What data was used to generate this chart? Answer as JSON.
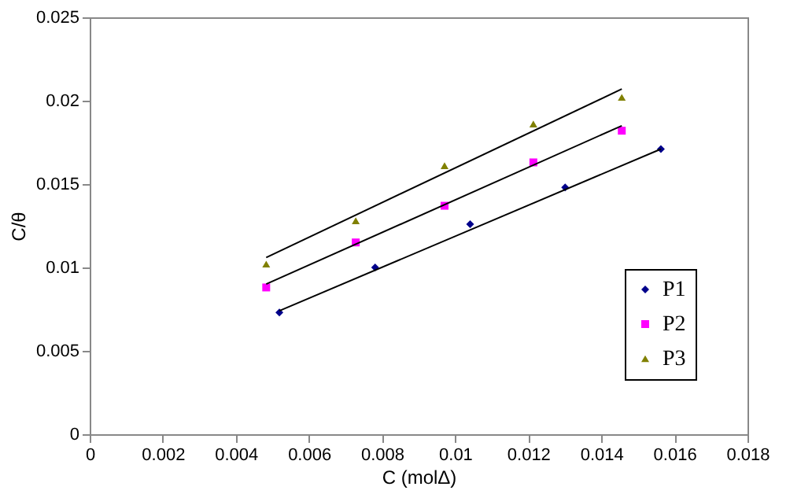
{
  "chart_data": {
    "type": "scatter",
    "xlabel": "C (molΔ)",
    "ylabel": "C/θ",
    "xlim": [
      0,
      0.018
    ],
    "ylim": [
      0,
      0.025
    ],
    "xticks": [
      0,
      0.002,
      0.004,
      0.006,
      0.008,
      0.01,
      0.012,
      0.014,
      0.016,
      0.018
    ],
    "yticks": [
      0,
      0.005,
      0.01,
      0.015,
      0.02,
      0.025
    ],
    "grid": false,
    "legend": "bottom right",
    "series": [
      {
        "name": "P1",
        "color": "#00008b",
        "marker": "diamond",
        "x": [
          0.00519,
          0.00781,
          0.01041,
          0.01301,
          0.01563
        ],
        "values": [
          0.0073,
          0.01,
          0.0126,
          0.0148,
          0.0171
        ]
      },
      {
        "name": "P2",
        "color": "#ff00ff",
        "marker": "square",
        "x": [
          0.00483,
          0.00728,
          0.00971,
          0.01214,
          0.01456
        ],
        "values": [
          0.0088,
          0.0115,
          0.0137,
          0.0163,
          0.0182
        ]
      },
      {
        "name": "P3",
        "color": "#808000",
        "marker": "triangle",
        "x": [
          0.00483,
          0.00728,
          0.00971,
          0.01214,
          0.01456
        ],
        "values": [
          0.0102,
          0.0128,
          0.0161,
          0.0186,
          0.0202
        ]
      },
      {
        "type": "line",
        "color": "#000000",
        "x": [
          0.00519,
          0.01563
        ],
        "values": [
          0.0074,
          0.0171
        ]
      },
      {
        "type": "line",
        "color": "#000000",
        "x": [
          0.00483,
          0.01456
        ],
        "values": [
          0.009,
          0.0185
        ]
      },
      {
        "type": "line",
        "color": "#000000",
        "x": [
          0.00483,
          0.01456
        ],
        "values": [
          0.0106,
          0.0207
        ]
      }
    ]
  }
}
